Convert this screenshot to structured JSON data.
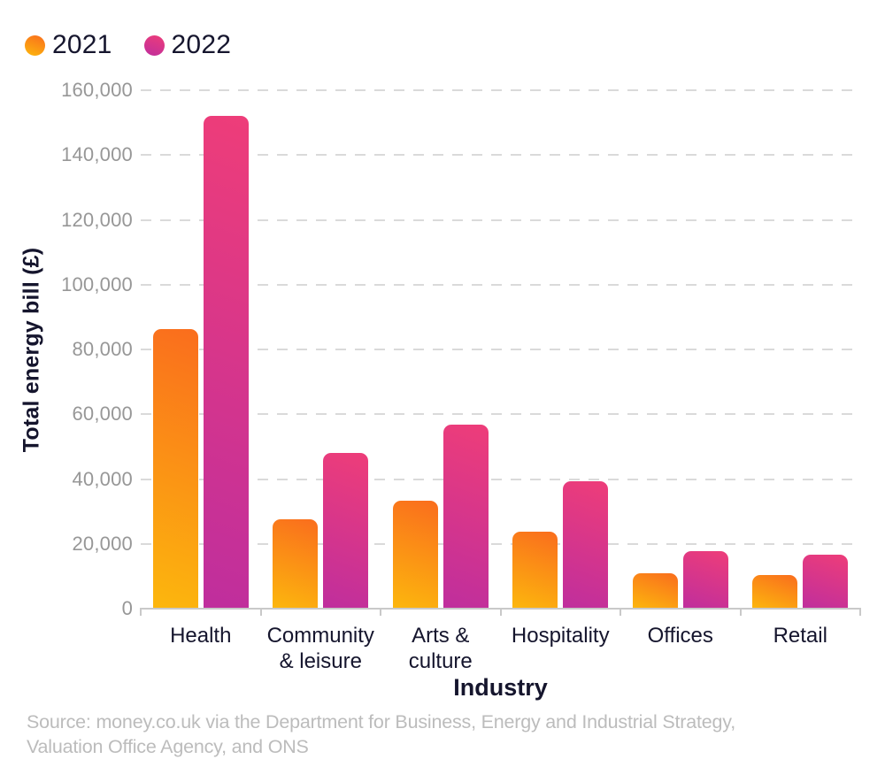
{
  "legend": {
    "items": [
      {
        "label": "2021",
        "gradient": [
          "#fa6d1d",
          "#fcb70d"
        ]
      },
      {
        "label": "2022",
        "gradient": [
          "#ee3d79",
          "#bf2e9d"
        ]
      }
    ]
  },
  "chart_data": {
    "type": "bar",
    "title": "",
    "categories": [
      "Health",
      "Community & leisure",
      "Arts & culture",
      "Hospitality",
      "Offices",
      "Retail"
    ],
    "category_display": [
      [
        "Health"
      ],
      [
        "Community",
        "& leisure"
      ],
      [
        "Arts &",
        "culture"
      ],
      [
        "Hospitality"
      ],
      [
        "Offices"
      ],
      [
        "Retail"
      ]
    ],
    "series": [
      {
        "name": "2021",
        "values": [
          86400,
          27500,
          33200,
          23700,
          10800,
          10500
        ],
        "gradient": [
          "#fa6d1d",
          "#fcb70d"
        ]
      },
      {
        "name": "2022",
        "values": [
          152000,
          48000,
          56700,
          39200,
          17700,
          16700
        ],
        "gradient": [
          "#ee3d79",
          "#bf2e9d"
        ]
      }
    ],
    "xlabel": "Industry",
    "ylabel": "Total energy bill (£)",
    "ylim": [
      0,
      160000
    ],
    "ytick_step": 20000,
    "ytick_labels": [
      "0",
      "20,000",
      "40,000",
      "60,000",
      "80,000",
      "100,000",
      "120,000",
      "140,000",
      "160,000"
    ],
    "grid": "horizontal-dashed",
    "legend_position": "top-left"
  },
  "colors": {
    "background": "#ffffff",
    "gridline": "#dadada",
    "axis": "#c9c9c9",
    "ytick_text": "#979797",
    "label_text": "#15152d",
    "source_text": "#bcbcbc"
  },
  "source": {
    "line1": "Source: money.co.uk via the Department for Business, Energy and Industrial Strategy,",
    "line2": "Valuation Office Agency, and ONS"
  }
}
